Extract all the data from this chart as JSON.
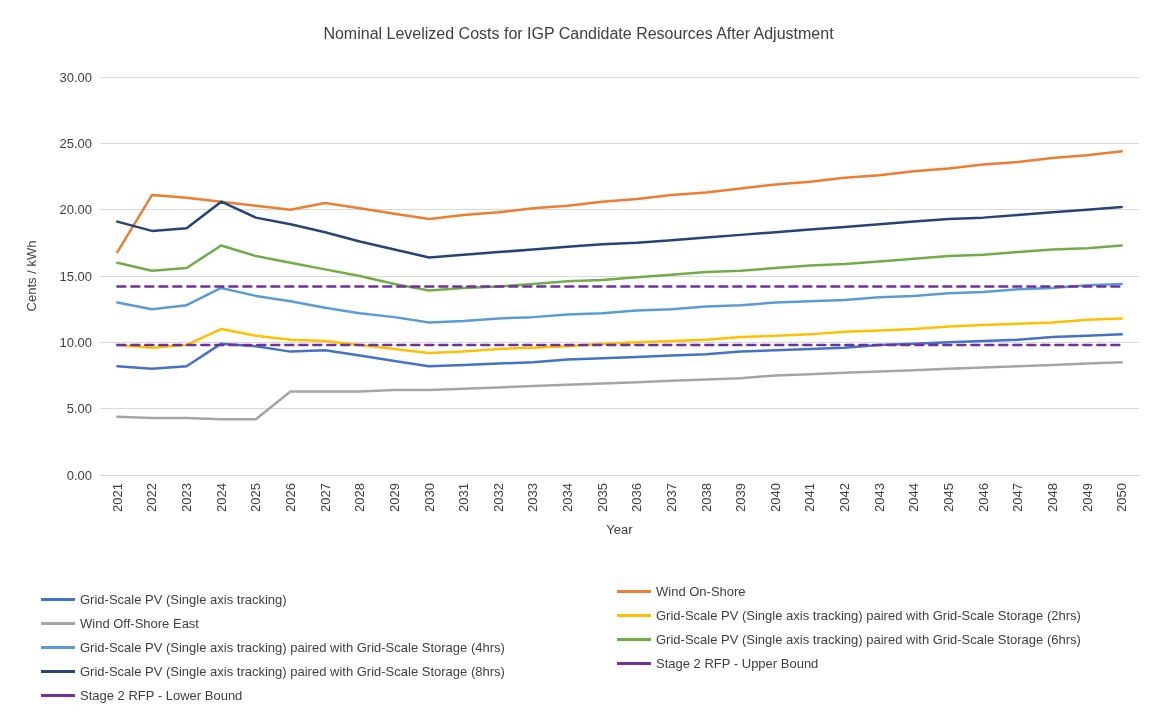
{
  "chart_data": {
    "type": "line",
    "title": "Nominal Levelized Costs for IGP Candidate Resources After Adjustment",
    "xlabel": "Year",
    "ylabel": "Cents / kWh",
    "categories": [
      "2021",
      "2022",
      "2023",
      "2024",
      "2025",
      "2026",
      "2027",
      "2028",
      "2029",
      "2030",
      "2031",
      "2032",
      "2033",
      "2034",
      "2035",
      "2036",
      "2037",
      "2038",
      "2039",
      "2040",
      "2041",
      "2042",
      "2043",
      "2044",
      "2045",
      "2046",
      "2047",
      "2048",
      "2049",
      "2050"
    ],
    "ylim": [
      0,
      30
    ],
    "yticks": [
      {
        "value": 0,
        "label": "0.00"
      },
      {
        "value": 5,
        "label": "5.00"
      },
      {
        "value": 10,
        "label": "10.00"
      },
      {
        "value": 15,
        "label": "15.00"
      },
      {
        "value": 20,
        "label": "20.00"
      },
      {
        "value": 25,
        "label": "25.00"
      },
      {
        "value": 30,
        "label": "30.00"
      }
    ],
    "grid": "y",
    "legend": "bottom",
    "marker": "none",
    "series": [
      {
        "name": "Grid-Scale PV (Single axis tracking)",
        "color": "#4472c4",
        "values": [
          8.2,
          8.0,
          8.2,
          9.9,
          9.7,
          9.3,
          9.4,
          9.0,
          8.6,
          8.2,
          8.3,
          8.4,
          8.5,
          8.7,
          8.8,
          8.9,
          9.0,
          9.1,
          9.3,
          9.4,
          9.5,
          9.6,
          9.8,
          9.9,
          10.0,
          10.1,
          10.2,
          10.4,
          10.5,
          10.6
        ]
      },
      {
        "name": "Wind On-Shore",
        "color": "#ed7d31",
        "values": [
          16.8,
          21.1,
          20.9,
          20.6,
          20.3,
          20.0,
          20.5,
          20.1,
          19.7,
          19.3,
          19.6,
          19.8,
          20.1,
          20.3,
          20.6,
          20.8,
          21.1,
          21.3,
          21.6,
          21.9,
          22.1,
          22.4,
          22.6,
          22.9,
          23.1,
          23.4,
          23.6,
          23.9,
          24.1,
          24.4
        ]
      },
      {
        "name": "Wind Off-Shore East",
        "color": "#a5a5a5",
        "values": [
          4.4,
          4.3,
          4.3,
          4.2,
          4.2,
          6.3,
          6.3,
          6.3,
          6.4,
          6.4,
          6.5,
          6.6,
          6.7,
          6.8,
          6.9,
          7.0,
          7.1,
          7.2,
          7.3,
          7.5,
          7.6,
          7.7,
          7.8,
          7.9,
          8.0,
          8.1,
          8.2,
          8.3,
          8.4,
          8.5
        ]
      },
      {
        "name": "Grid-Scale PV (Single axis tracking) paired with Grid-Scale Storage (2hrs)",
        "color": "#ffc000",
        "values": [
          9.8,
          9.6,
          9.8,
          11.0,
          10.5,
          10.2,
          10.1,
          9.8,
          9.5,
          9.2,
          9.3,
          9.5,
          9.6,
          9.7,
          9.9,
          10.0,
          10.1,
          10.2,
          10.4,
          10.5,
          10.6,
          10.8,
          10.9,
          11.0,
          11.2,
          11.3,
          11.4,
          11.5,
          11.7,
          11.8
        ]
      },
      {
        "name": "Grid-Scale PV (Single axis tracking) paired with Grid-Scale Storage (4hrs)",
        "color": "#5b9bd5",
        "values": [
          13.0,
          12.5,
          12.8,
          14.1,
          13.5,
          13.1,
          12.6,
          12.2,
          11.9,
          11.5,
          11.6,
          11.8,
          11.9,
          12.1,
          12.2,
          12.4,
          12.5,
          12.7,
          12.8,
          13.0,
          13.1,
          13.2,
          13.4,
          13.5,
          13.7,
          13.8,
          14.0,
          14.1,
          14.3,
          14.4
        ]
      },
      {
        "name": "Grid-Scale PV (Single axis tracking) paired with Grid-Scale Storage (6hrs)",
        "color": "#70ad47",
        "values": [
          16.0,
          15.4,
          15.6,
          17.3,
          16.5,
          16.0,
          15.5,
          15.0,
          14.4,
          13.9,
          14.1,
          14.2,
          14.4,
          14.6,
          14.7,
          14.9,
          15.1,
          15.3,
          15.4,
          15.6,
          15.8,
          15.9,
          16.1,
          16.3,
          16.5,
          16.6,
          16.8,
          17.0,
          17.1,
          17.3
        ]
      },
      {
        "name": "Grid-Scale PV (Single axis tracking) paired with Grid-Scale Storage (8hrs)",
        "color": "#264478",
        "values": [
          19.1,
          18.4,
          18.6,
          20.6,
          19.4,
          18.9,
          18.3,
          17.6,
          17.0,
          16.4,
          16.6,
          16.8,
          17.0,
          17.2,
          17.4,
          17.5,
          17.7,
          17.9,
          18.1,
          18.3,
          18.5,
          18.7,
          18.9,
          19.1,
          19.3,
          19.4,
          19.6,
          19.8,
          20.0,
          20.2
        ]
      },
      {
        "name": "Stage 2 RFP - Upper Bound",
        "color": "#7030a0",
        "line_style": "dashed",
        "values": [
          14.2,
          14.2,
          14.2,
          14.2,
          14.2,
          14.2,
          14.2,
          14.2,
          14.2,
          14.2,
          14.2,
          14.2,
          14.2,
          14.2,
          14.2,
          14.2,
          14.2,
          14.2,
          14.2,
          14.2,
          14.2,
          14.2,
          14.2,
          14.2,
          14.2,
          14.2,
          14.2,
          14.2,
          14.2,
          14.2
        ]
      },
      {
        "name": "Stage 2 RFP - Lower Bound",
        "color": "#7030a0",
        "line_style": "dashed",
        "values": [
          9.8,
          9.8,
          9.8,
          9.8,
          9.8,
          9.8,
          9.8,
          9.8,
          9.8,
          9.8,
          9.8,
          9.8,
          9.8,
          9.8,
          9.8,
          9.8,
          9.8,
          9.8,
          9.8,
          9.8,
          9.8,
          9.8,
          9.8,
          9.8,
          9.8,
          9.8,
          9.8,
          9.8,
          9.8,
          9.8
        ]
      }
    ]
  }
}
